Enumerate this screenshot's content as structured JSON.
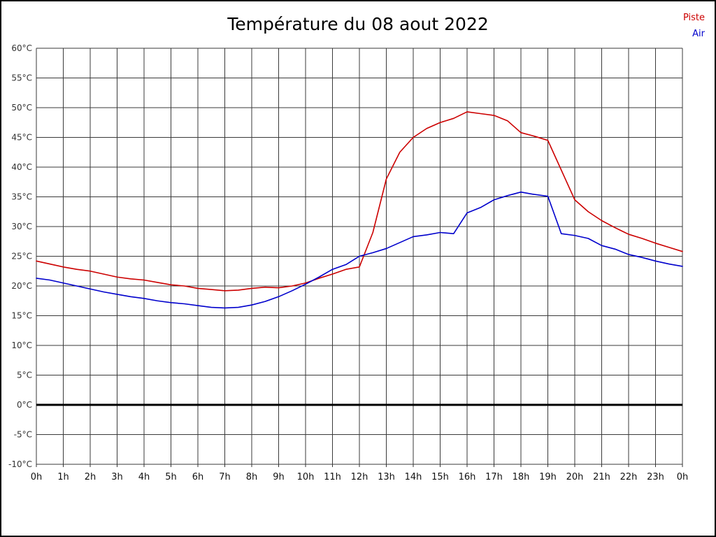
{
  "header": {
    "title": "Température du 08 aout 2022"
  },
  "legend": [
    {
      "label": "Piste",
      "color": "#cc0000"
    },
    {
      "label": "Air",
      "color": "#0000cc"
    }
  ],
  "chart_data": {
    "type": "line",
    "title": "Température du 08 aout 2022",
    "xlabel": "",
    "ylabel": "",
    "xlim": [
      0,
      24
    ],
    "ylim": [
      -10,
      60
    ],
    "grid": true,
    "grid_color": "#3a3a3a",
    "legend_position": "top-right",
    "zero_line": {
      "value": 0,
      "color": "#000000",
      "width": 3
    },
    "x_step": 0.5,
    "y_ticks": [
      "60°C",
      "55°C",
      "50°C",
      "45°C",
      "40°C",
      "35°C",
      "30°C",
      "25°C",
      "20°C",
      "15°C",
      "10°C",
      "5°C",
      "0°C",
      "-5°C",
      "-10°C"
    ],
    "x_ticks": [
      "0h",
      "1h",
      "2h",
      "3h",
      "4h",
      "5h",
      "6h",
      "7h",
      "8h",
      "9h",
      "10h",
      "11h",
      "12h",
      "13h",
      "14h",
      "15h",
      "16h",
      "17h",
      "18h",
      "19h",
      "20h",
      "21h",
      "22h",
      "23h",
      "0h"
    ],
    "series": [
      {
        "name": "Piste",
        "color": "#cc0000",
        "values": [
          24.2,
          23.7,
          23.2,
          22.8,
          22.5,
          22.0,
          21.5,
          21.2,
          21.0,
          20.6,
          20.2,
          20.0,
          19.6,
          19.4,
          19.2,
          19.3,
          19.6,
          19.8,
          19.7,
          20.0,
          20.5,
          21.3,
          22.0,
          22.8,
          23.2,
          29.0,
          38.0,
          42.5,
          45.0,
          46.5,
          47.5,
          48.2,
          49.3,
          49.0,
          48.7,
          47.8,
          45.8,
          45.2,
          44.5,
          39.5,
          34.5,
          32.5,
          31.0,
          29.8,
          28.7,
          28.0,
          27.2,
          26.5,
          25.8
        ]
      },
      {
        "name": "Air",
        "color": "#0000cc",
        "values": [
          21.3,
          21.0,
          20.5,
          20.0,
          19.5,
          19.0,
          18.6,
          18.2,
          17.9,
          17.5,
          17.2,
          17.0,
          16.7,
          16.4,
          16.3,
          16.4,
          16.8,
          17.4,
          18.2,
          19.2,
          20.3,
          21.5,
          22.8,
          23.6,
          25.0,
          25.6,
          26.3,
          27.3,
          28.3,
          28.6,
          29.0,
          28.8,
          32.3,
          33.2,
          34.5,
          35.2,
          35.8,
          35.4,
          35.1,
          28.8,
          28.5,
          28.0,
          26.8,
          26.2,
          25.3,
          24.8,
          24.2,
          23.7,
          23.3
        ]
      }
    ]
  }
}
